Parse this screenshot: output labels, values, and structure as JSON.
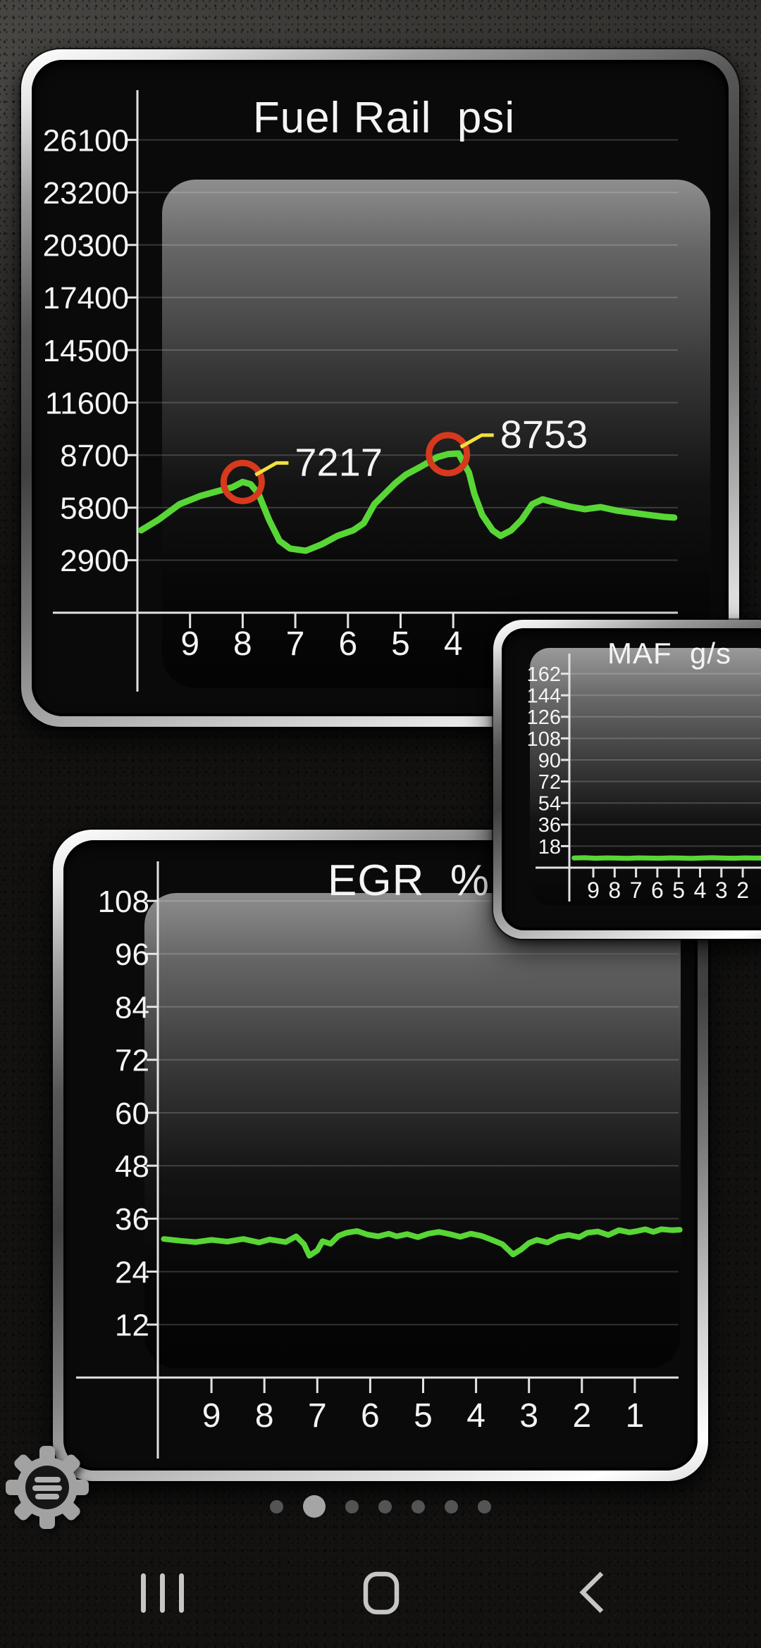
{
  "colors": {
    "line": "#58d636",
    "annotation_circle": "#d6391d",
    "annotation_leader": "#f2e13e",
    "text": "#f4f4f4"
  },
  "chart_data": [
    {
      "type": "line",
      "title": "Fuel Rail  psi",
      "y_ticks": [
        26100,
        23200,
        20300,
        17400,
        14500,
        11600,
        8700,
        5800,
        2900
      ],
      "x_ticks": [
        9,
        8,
        7,
        6,
        5,
        4
      ],
      "x_range": [
        10,
        0
      ],
      "y_range": [
        0,
        29000
      ],
      "grid": true,
      "legend": false,
      "series": [
        {
          "name": "Fuel Rail psi",
          "points": [
            [
              9.93,
              4550
            ],
            [
              9.6,
              5130
            ],
            [
              9.2,
              5990
            ],
            [
              8.8,
              6450
            ],
            [
              8.5,
              6690
            ],
            [
              8.2,
              6920
            ],
            [
              8.0,
              7217
            ],
            [
              7.85,
              7100
            ],
            [
              7.7,
              6570
            ],
            [
              7.5,
              5130
            ],
            [
              7.3,
              3965
            ],
            [
              7.1,
              3540
            ],
            [
              6.8,
              3420
            ],
            [
              6.5,
              3770
            ],
            [
              6.2,
              4240
            ],
            [
              5.9,
              4550
            ],
            [
              5.7,
              4940
            ],
            [
              5.5,
              5990
            ],
            [
              5.3,
              6570
            ],
            [
              5.1,
              7150
            ],
            [
              4.9,
              7620
            ],
            [
              4.6,
              8090
            ],
            [
              4.3,
              8590
            ],
            [
              4.1,
              8753
            ],
            [
              3.9,
              8790
            ],
            [
              3.7,
              7730
            ],
            [
              3.6,
              6570
            ],
            [
              3.45,
              5400
            ],
            [
              3.25,
              4550
            ],
            [
              3.1,
              4240
            ],
            [
              2.9,
              4550
            ],
            [
              2.7,
              5130
            ],
            [
              2.5,
              5990
            ],
            [
              2.3,
              6260
            ],
            [
              2.1,
              6100
            ],
            [
              1.8,
              5870
            ],
            [
              1.5,
              5710
            ],
            [
              1.2,
              5830
            ],
            [
              0.9,
              5640
            ],
            [
              0.6,
              5520
            ],
            [
              0.3,
              5400
            ],
            [
              0.0,
              5290
            ],
            [
              -0.2,
              5250
            ]
          ]
        }
      ],
      "annotations": [
        {
          "x": 8.0,
          "y": 7217,
          "label": "7217"
        },
        {
          "x": 4.1,
          "y": 8753,
          "label": "8753"
        }
      ]
    },
    {
      "type": "line",
      "title": "MAF  g/s",
      "y_ticks": [
        162,
        144,
        126,
        108,
        90,
        72,
        54,
        36,
        18
      ],
      "x_ticks": [
        9,
        8,
        7,
        6,
        5,
        4,
        3,
        2
      ],
      "x_range": [
        10,
        -1
      ],
      "y_range": [
        0,
        172
      ],
      "grid": true,
      "legend": false,
      "series": [
        {
          "name": "MAF g/s",
          "points": [
            [
              9.9,
              8.1
            ],
            [
              9.4,
              8.3
            ],
            [
              8.9,
              7.9
            ],
            [
              8.4,
              8.2
            ],
            [
              7.9,
              8.0
            ],
            [
              7.4,
              7.8
            ],
            [
              6.9,
              8.2
            ],
            [
              6.4,
              8.0
            ],
            [
              5.9,
              7.9
            ],
            [
              5.4,
              8.2
            ],
            [
              4.9,
              8.0
            ],
            [
              4.4,
              7.8
            ],
            [
              3.9,
              8.1
            ],
            [
              3.4,
              8.3
            ],
            [
              2.9,
              8.0
            ],
            [
              2.4,
              7.9
            ],
            [
              1.9,
              8.2
            ],
            [
              1.4,
              8.0
            ],
            [
              0.9,
              8.1
            ],
            [
              0.4,
              7.9
            ],
            [
              -0.1,
              8.2
            ],
            [
              -0.6,
              8.0
            ],
            [
              -1.1,
              8.1
            ]
          ]
        }
      ],
      "annotations": []
    },
    {
      "type": "line",
      "title": "EGR  %",
      "y_ticks": [
        108,
        96,
        84,
        72,
        60,
        48,
        36,
        24,
        12
      ],
      "x_ticks": [
        9,
        8,
        7,
        6,
        5,
        4,
        3,
        2,
        1
      ],
      "x_range": [
        10,
        0
      ],
      "y_range": [
        0,
        117
      ],
      "grid": true,
      "legend": false,
      "series": [
        {
          "name": "EGR %",
          "points": [
            [
              9.9,
              31.4
            ],
            [
              9.6,
              31.0
            ],
            [
              9.3,
              30.7
            ],
            [
              9.0,
              31.2
            ],
            [
              8.7,
              30.8
            ],
            [
              8.4,
              31.4
            ],
            [
              8.1,
              30.6
            ],
            [
              7.9,
              31.3
            ],
            [
              7.6,
              30.7
            ],
            [
              7.4,
              32.0
            ],
            [
              7.25,
              30.2
            ],
            [
              7.15,
              27.6
            ],
            [
              7.0,
              28.8
            ],
            [
              6.9,
              30.9
            ],
            [
              6.75,
              30.3
            ],
            [
              6.6,
              32.1
            ],
            [
              6.45,
              32.8
            ],
            [
              6.25,
              33.2
            ],
            [
              6.05,
              32.4
            ],
            [
              5.85,
              32.0
            ],
            [
              5.65,
              32.6
            ],
            [
              5.5,
              32.0
            ],
            [
              5.3,
              32.5
            ],
            [
              5.1,
              31.8
            ],
            [
              4.9,
              32.6
            ],
            [
              4.7,
              33.0
            ],
            [
              4.5,
              32.5
            ],
            [
              4.3,
              31.9
            ],
            [
              4.1,
              32.6
            ],
            [
              3.9,
              32.1
            ],
            [
              3.7,
              31.2
            ],
            [
              3.5,
              30.2
            ],
            [
              3.3,
              27.9
            ],
            [
              3.15,
              29.0
            ],
            [
              3.0,
              30.5
            ],
            [
              2.85,
              31.2
            ],
            [
              2.65,
              30.6
            ],
            [
              2.45,
              31.8
            ],
            [
              2.25,
              32.3
            ],
            [
              2.05,
              31.8
            ],
            [
              1.9,
              32.8
            ],
            [
              1.7,
              33.1
            ],
            [
              1.5,
              32.3
            ],
            [
              1.3,
              33.4
            ],
            [
              1.1,
              32.9
            ],
            [
              0.95,
              33.2
            ],
            [
              0.8,
              33.6
            ],
            [
              0.65,
              33.0
            ],
            [
              0.5,
              33.6
            ],
            [
              0.3,
              33.4
            ],
            [
              0.15,
              33.5
            ]
          ]
        }
      ],
      "annotations": []
    }
  ],
  "pager": {
    "dots": 7,
    "active_index": 1
  },
  "gear_button": {
    "icon": "gear-menu"
  },
  "nav": {
    "items": [
      "recents",
      "home",
      "back"
    ]
  }
}
